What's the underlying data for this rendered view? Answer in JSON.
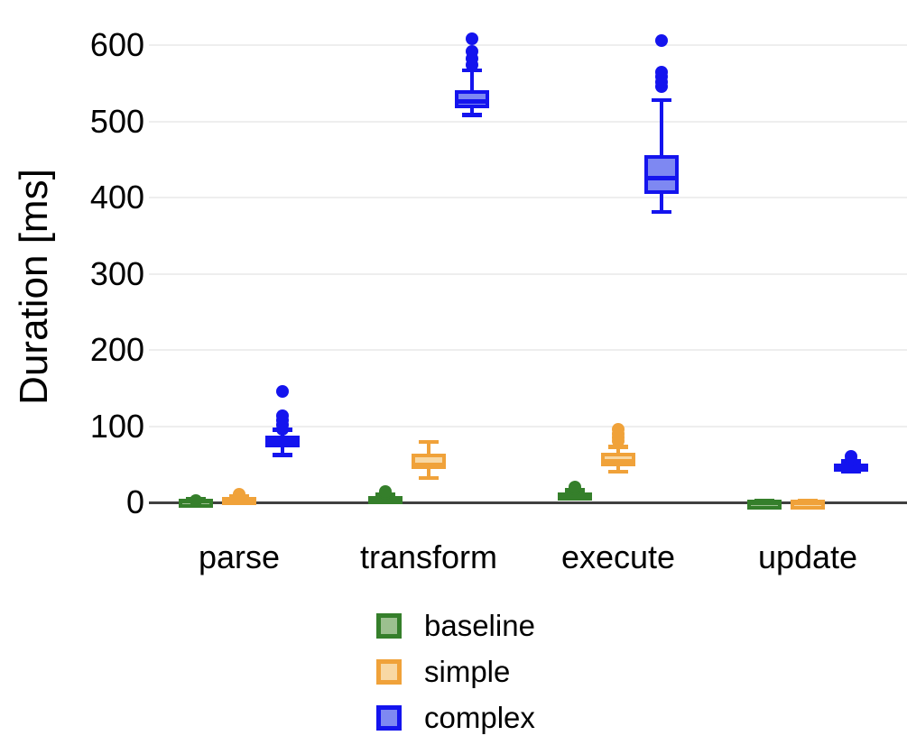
{
  "chart_data": {
    "type": "boxplot",
    "title": "",
    "ylabel": "Duration [ms]",
    "xlabel": "",
    "categories": [
      "parse",
      "transform",
      "execute",
      "update"
    ],
    "y_ticks": [
      0,
      100,
      200,
      300,
      400,
      500,
      600
    ],
    "ylim": [
      0,
      640
    ],
    "grid": "horizontal",
    "legend_position": "bottom",
    "series": [
      {
        "name": "baseline",
        "stroke_color": "#357f2b",
        "fill_color": "#9cc08f",
        "boxes": [
          {
            "category": "parse",
            "whisker_low": 0.5,
            "q1": 1,
            "median": 2,
            "q3": 3,
            "whisker_high": 4,
            "outliers": [
              2
            ]
          },
          {
            "category": "transform",
            "whisker_low": 1,
            "q1": 3,
            "median": 5,
            "q3": 8,
            "whisker_high": 10,
            "outliers": [
              12,
              14
            ]
          },
          {
            "category": "execute",
            "whisker_low": 5,
            "q1": 8,
            "median": 10,
            "q3": 13,
            "whisker_high": 16,
            "outliers": [
              18,
              20
            ]
          },
          {
            "category": "update",
            "whisker_low": 0.2,
            "q1": 0.4,
            "median": 0.7,
            "q3": 1,
            "whisker_high": 1.5,
            "outliers": []
          }
        ]
      },
      {
        "name": "simple",
        "stroke_color": "#f0a23a",
        "fill_color": "#f8d8a4",
        "boxes": [
          {
            "category": "parse",
            "whisker_low": 1,
            "q1": 2.5,
            "median": 4.5,
            "q3": 7,
            "whisker_high": 8.5,
            "outliers": [
              8,
              10,
              11
            ]
          },
          {
            "category": "transform",
            "whisker_low": 32,
            "q1": 44,
            "median": 49,
            "q3": 64,
            "whisker_high": 79,
            "outliers": []
          },
          {
            "category": "execute",
            "whisker_low": 40,
            "q1": 47,
            "median": 54,
            "q3": 65,
            "whisker_high": 73,
            "outliers": [
              80,
              85,
              90,
              96
            ]
          },
          {
            "category": "update",
            "whisker_low": 0.2,
            "q1": 0.4,
            "median": 0.7,
            "q3": 1,
            "whisker_high": 1.5,
            "outliers": []
          }
        ]
      },
      {
        "name": "complex",
        "stroke_color": "#1414ee",
        "fill_color": "#7e88f2",
        "boxes": [
          {
            "category": "parse",
            "whisker_low": 62,
            "q1": 72,
            "median": 80,
            "q3": 88,
            "whisker_high": 95,
            "outliers": [
              96,
              102,
              108,
              114,
              145
            ]
          },
          {
            "category": "transform",
            "whisker_low": 508,
            "q1": 517,
            "median": 526,
            "q3": 541,
            "whisker_high": 567,
            "outliers": [
              574,
              582,
              592,
              608
            ]
          },
          {
            "category": "execute",
            "whisker_low": 381,
            "q1": 405,
            "median": 425,
            "q3": 456,
            "whisker_high": 528,
            "outliers": [
              545,
              552,
              558,
              565,
              606
            ]
          },
          {
            "category": "update",
            "whisker_low": 40,
            "q1": 43,
            "median": 47,
            "q3": 51,
            "whisker_high": 54,
            "outliers": [
              56,
              60
            ]
          }
        ]
      }
    ]
  }
}
